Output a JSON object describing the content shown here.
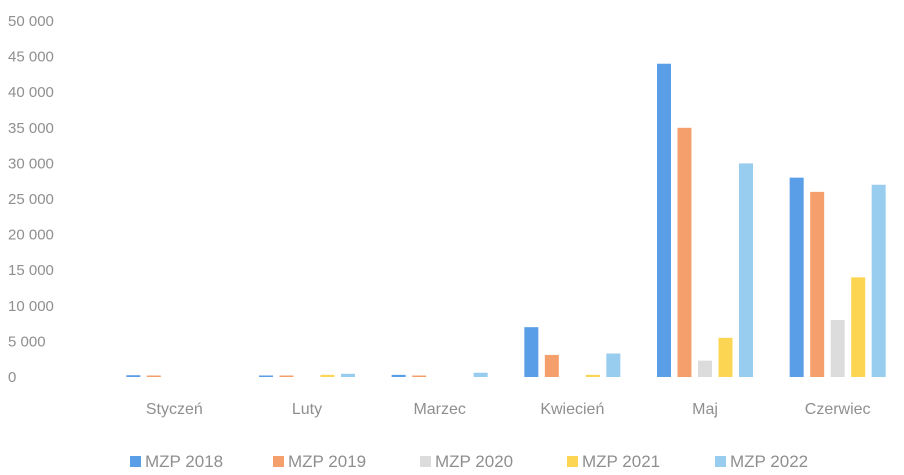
{
  "chart_data": {
    "type": "bar",
    "categories": [
      "Styczeń",
      "Luty",
      "Marzec",
      "Kwiecień",
      "Maj",
      "Czerwiec"
    ],
    "series": [
      {
        "name": "MZP 2018",
        "values": [
          250,
          200,
          300,
          7000,
          44000,
          28000
        ],
        "color": "#5b9ee8"
      },
      {
        "name": "MZP 2019",
        "values": [
          100,
          100,
          100,
          3100,
          35000,
          26000
        ],
        "color": "#f5a06c"
      },
      {
        "name": "MZP 2020",
        "values": [
          0,
          0,
          0,
          0,
          2300,
          8000
        ],
        "color": "#dcdcdc"
      },
      {
        "name": "MZP 2021",
        "values": [
          0,
          300,
          0,
          300,
          5500,
          14000
        ],
        "color": "#fcd553"
      },
      {
        "name": "MZP 2022",
        "values": [
          0,
          450,
          600,
          3300,
          30000,
          27000
        ],
        "color": "#99cdf0"
      }
    ],
    "yticks": [
      "0",
      "5 000",
      "10 000",
      "15 000",
      "20 000",
      "25 000",
      "30 000",
      "35 000",
      "40 000",
      "45 000",
      "50 000"
    ],
    "ylim": [
      0,
      50000
    ],
    "grid": false,
    "legend": "bottom"
  }
}
